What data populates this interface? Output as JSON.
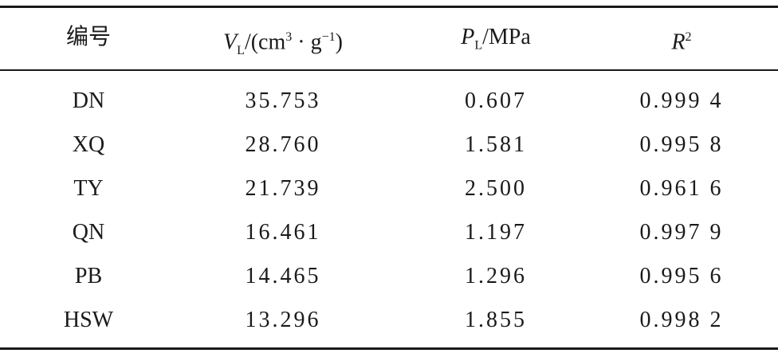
{
  "table": {
    "header": [
      [
        "编号"
      ],
      [
        "V",
        "L",
        "/(cm",
        "3",
        " · g",
        "−1",
        ")"
      ],
      [
        "P",
        "L",
        "/MPa"
      ],
      [
        "R",
        "2"
      ]
    ],
    "rows": [
      [
        "DN",
        "35.753",
        "0.607",
        "0.999 4"
      ],
      [
        "XQ",
        "28.760",
        "1.581",
        "0.995 8"
      ],
      [
        "TY",
        "21.739",
        "2.500",
        "0.961 6"
      ],
      [
        "QN",
        "16.461",
        "1.197",
        "0.997 9"
      ],
      [
        "PB",
        "14.465",
        "1.296",
        "0.995 6"
      ],
      [
        "HSW",
        "13.296",
        "1.855",
        "0.998 2"
      ]
    ]
  }
}
